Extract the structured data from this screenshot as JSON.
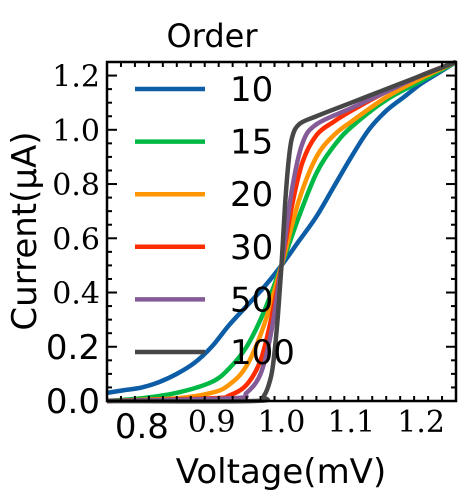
{
  "chart_data": {
    "type": "line",
    "title": "",
    "xlabel": "Voltage(mV)",
    "ylabel": "Current(μA)",
    "xlim": [
      0.75,
      1.25
    ],
    "ylim": [
      0.0,
      1.25
    ],
    "grid": false,
    "legend_title": "Order",
    "legend_position": "top-left",
    "x_ticks": [
      {
        "value": 0.8,
        "label": "0.8",
        "font": "sans"
      },
      {
        "value": 0.9,
        "label": "0.9",
        "font": "serif"
      },
      {
        "value": 1.0,
        "label": "1.0",
        "font": "serif"
      },
      {
        "value": 1.1,
        "label": "1.1",
        "font": "serif"
      },
      {
        "value": 1.2,
        "label": "1.2",
        "font": "serif"
      }
    ],
    "y_ticks": [
      {
        "value": 0.0,
        "label": "0.0",
        "font": "sans"
      },
      {
        "value": 0.2,
        "label": "0.2",
        "font": "sans"
      },
      {
        "value": 0.4,
        "label": "0.4",
        "font": "serif"
      },
      {
        "value": 0.6,
        "label": "0.6",
        "font": "serif"
      },
      {
        "value": 0.8,
        "label": "0.8",
        "font": "serif"
      },
      {
        "value": 1.0,
        "label": "1.0",
        "font": "serif"
      },
      {
        "value": 1.2,
        "label": "1.2",
        "font": "serif"
      }
    ],
    "series": [
      {
        "name": "10",
        "color": "#0c5da5",
        "x": [
          0.75,
          0.775,
          0.8,
          0.825,
          0.85,
          0.875,
          0.9,
          0.925,
          0.95,
          0.975,
          1.0,
          1.025,
          1.05,
          1.075,
          1.1,
          1.125,
          1.15,
          1.175,
          1.2,
          1.225,
          1.25
        ],
        "y": [
          0.03,
          0.04,
          0.05,
          0.07,
          0.1,
          0.14,
          0.2,
          0.28,
          0.35,
          0.42,
          0.5,
          0.59,
          0.68,
          0.79,
          0.9,
          1.0,
          1.07,
          1.12,
          1.17,
          1.21,
          1.25
        ]
      },
      {
        "name": "15",
        "color": "#00b945",
        "x": [
          0.75,
          0.8,
          0.85,
          0.9,
          0.925,
          0.95,
          0.975,
          1.0,
          1.025,
          1.05,
          1.075,
          1.1,
          1.15,
          1.2,
          1.25
        ],
        "y": [
          0.0,
          0.01,
          0.03,
          0.07,
          0.12,
          0.2,
          0.33,
          0.5,
          0.68,
          0.84,
          0.94,
          1.01,
          1.11,
          1.18,
          1.25
        ]
      },
      {
        "name": "20",
        "color": "#ff9500",
        "x": [
          0.75,
          0.85,
          0.9,
          0.925,
          0.95,
          0.975,
          1.0,
          1.025,
          1.05,
          1.075,
          1.1,
          1.15,
          1.2,
          1.25
        ],
        "y": [
          0.0,
          0.01,
          0.03,
          0.06,
          0.13,
          0.28,
          0.5,
          0.74,
          0.9,
          0.98,
          1.03,
          1.12,
          1.19,
          1.25
        ]
      },
      {
        "name": "30",
        "color": "#ff2c00",
        "x": [
          0.75,
          0.9,
          0.925,
          0.95,
          0.97,
          0.985,
          1.0,
          1.015,
          1.03,
          1.05,
          1.075,
          1.1,
          1.15,
          1.2,
          1.25
        ],
        "y": [
          0.0,
          0.01,
          0.02,
          0.06,
          0.15,
          0.3,
          0.5,
          0.72,
          0.88,
          0.98,
          1.03,
          1.07,
          1.14,
          1.2,
          1.25
        ]
      },
      {
        "name": "50",
        "color": "#845b97",
        "x": [
          0.75,
          0.93,
          0.95,
          0.97,
          0.985,
          1.0,
          1.015,
          1.03,
          1.05,
          1.1,
          1.15,
          1.2,
          1.25
        ],
        "y": [
          0.0,
          0.01,
          0.03,
          0.1,
          0.25,
          0.5,
          0.78,
          0.95,
          1.02,
          1.08,
          1.14,
          1.2,
          1.25
        ]
      },
      {
        "name": "100",
        "color": "#474747",
        "x": [
          0.75,
          0.96,
          0.975,
          0.985,
          0.99,
          0.995,
          1.0,
          1.005,
          1.01,
          1.015,
          1.025,
          1.05,
          1.1,
          1.15,
          1.2,
          1.25
        ],
        "y": [
          0.0,
          0.0,
          0.02,
          0.09,
          0.18,
          0.32,
          0.5,
          0.72,
          0.88,
          0.97,
          1.02,
          1.05,
          1.1,
          1.15,
          1.2,
          1.25
        ]
      }
    ]
  }
}
